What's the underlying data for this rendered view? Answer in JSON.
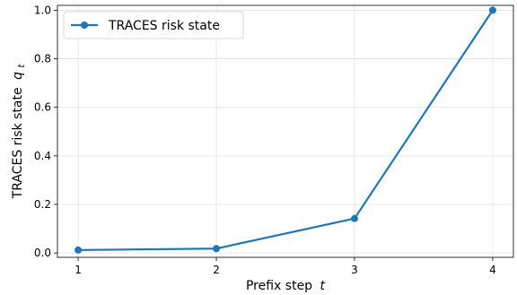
{
  "chart_data": {
    "type": "line",
    "xlabel_main": "Prefix step",
    "xlabel_var": "t",
    "ylabel_main": "TRACES risk state",
    "ylabel_var": "q",
    "ylabel_sub": "t",
    "x": [
      1,
      2,
      3,
      4
    ],
    "series": [
      {
        "name": "TRACES risk state",
        "color": "#1f77b4",
        "values": [
          0.012,
          0.018,
          0.142,
          1.0
        ]
      }
    ],
    "xticks": [
      "1",
      "2",
      "3",
      "4"
    ],
    "yticks": [
      "0.0",
      "0.2",
      "0.4",
      "0.6",
      "0.8",
      "1.0"
    ],
    "xlim": [
      0.85,
      4.15
    ],
    "ylim": [
      -0.018,
      1.02
    ],
    "grid": true,
    "legend_position": "upper-left"
  }
}
